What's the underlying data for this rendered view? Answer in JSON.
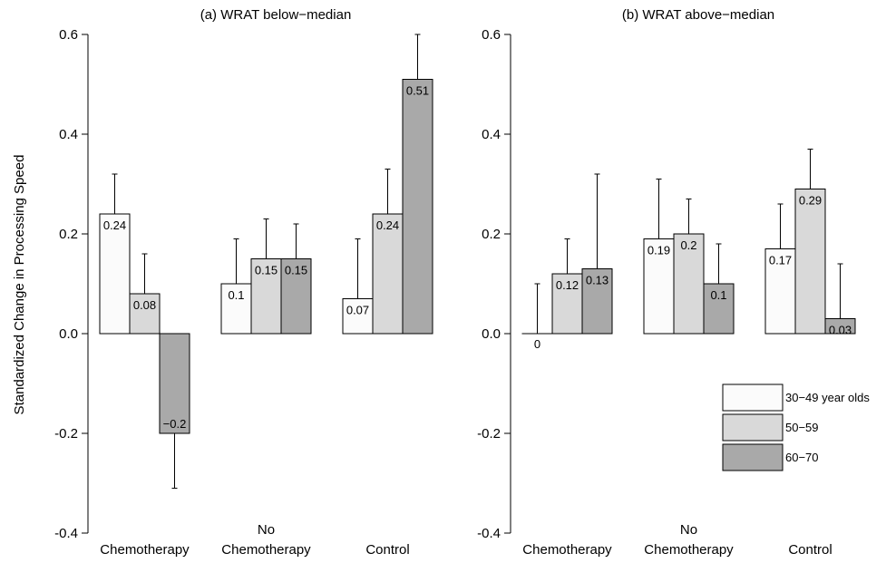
{
  "chart_data": {
    "type": "bar",
    "ylabel": "Standardized Change in Processing Speed",
    "ylim": [
      -0.4,
      0.6
    ],
    "yticks": [
      "-0.4",
      "-0.2",
      "0.0",
      "0.2",
      "0.4",
      "0.6"
    ],
    "ytick_values": [
      -0.4,
      -0.2,
      0.0,
      0.2,
      0.4,
      0.6
    ],
    "grid": false,
    "legend_position": "lower-right",
    "categories": [
      {
        "lines": [
          "Chemotherapy"
        ]
      },
      {
        "lines": [
          "No",
          "Chemotherapy"
        ]
      },
      {
        "lines": [
          "Control"
        ]
      }
    ],
    "series": [
      {
        "name": "30−49 year olds",
        "color": "#fbfbfb"
      },
      {
        "name": "50−59",
        "color": "#d9d9d9"
      },
      {
        "name": "60−70",
        "color": "#a9a9a9"
      }
    ],
    "panels": [
      {
        "title": "(a) WRAT below−median",
        "values": [
          [
            0.24,
            0.08,
            -0.2
          ],
          [
            0.1,
            0.15,
            0.15
          ],
          [
            0.07,
            0.24,
            0.51
          ]
        ],
        "labels": [
          [
            "0.24",
            "0.08",
            "−0.2"
          ],
          [
            "0.1",
            "0.15",
            "0.15"
          ],
          [
            "0.07",
            "0.24",
            "0.51"
          ]
        ],
        "error_upper": [
          [
            0.32,
            0.16,
            -0.31
          ],
          [
            0.19,
            0.23,
            0.22
          ],
          [
            0.19,
            0.33,
            0.6
          ]
        ]
      },
      {
        "title": "(b) WRAT above−median",
        "values": [
          [
            0.0,
            0.12,
            0.13
          ],
          [
            0.19,
            0.2,
            0.1
          ],
          [
            0.17,
            0.29,
            0.03
          ]
        ],
        "labels": [
          [
            "0",
            "0.12",
            "0.13"
          ],
          [
            "0.19",
            "0.2",
            "0.1"
          ],
          [
            "0.17",
            "0.29",
            "0.03"
          ]
        ],
        "error_upper": [
          [
            0.1,
            0.19,
            0.32
          ],
          [
            0.31,
            0.27,
            0.18
          ],
          [
            0.26,
            0.37,
            0.14
          ]
        ]
      }
    ]
  }
}
